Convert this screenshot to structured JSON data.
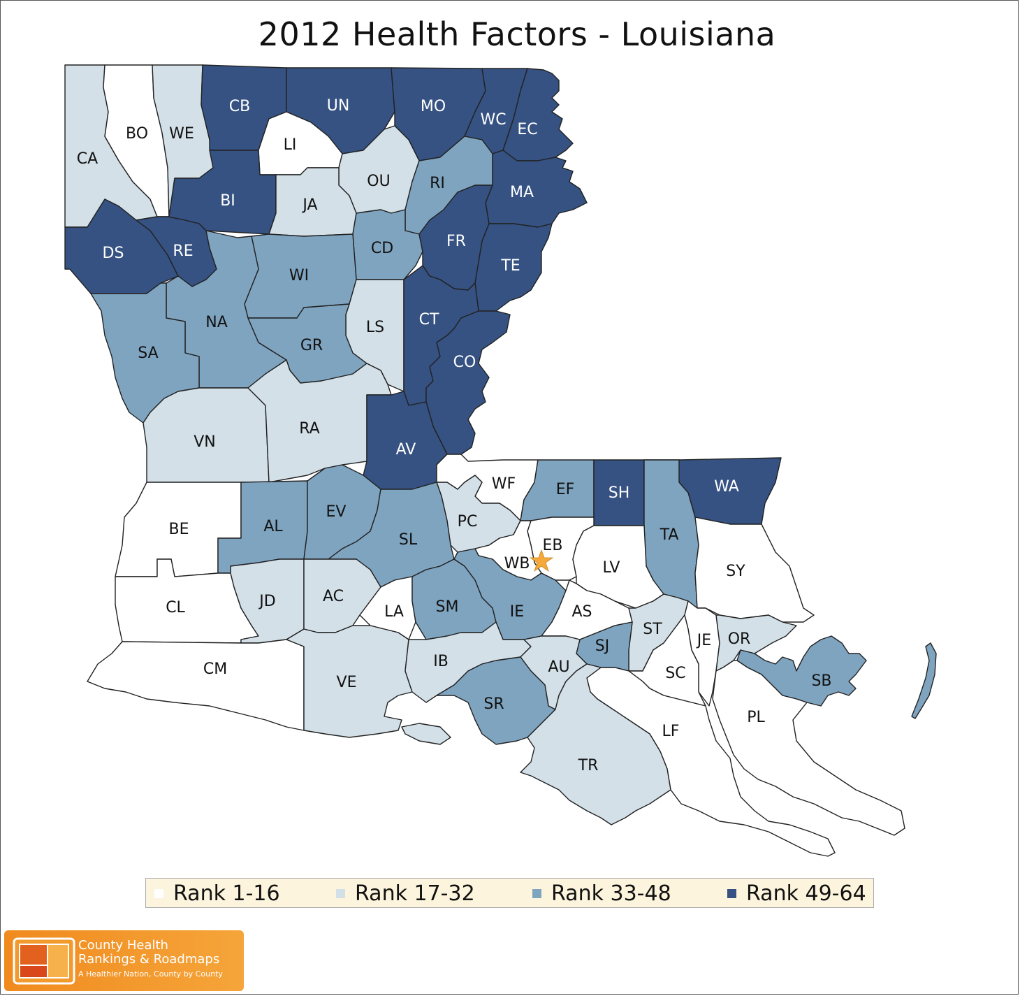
{
  "title": "2012 Health Factors - Louisiana",
  "colors": {
    "rank_1_16": "#ffffff",
    "rank_17_32": "#d3e0e8",
    "rank_33_48": "#7fa4c0",
    "rank_49_64": "#355282",
    "capital_star": "#f5a93a"
  },
  "legend": [
    {
      "label": "Rank 1-16",
      "color": "#ffffff"
    },
    {
      "label": "Rank 17-32",
      "color": "#d3e0e8"
    },
    {
      "label": "Rank 33-48",
      "color": "#7fa4c0"
    },
    {
      "label": "Rank 49-64",
      "color": "#355282"
    }
  ],
  "parishes": [
    {
      "abbr": "CA",
      "rank_group": 2
    },
    {
      "abbr": "BO",
      "rank_group": 1
    },
    {
      "abbr": "WE",
      "rank_group": 2
    },
    {
      "abbr": "CB",
      "rank_group": 4
    },
    {
      "abbr": "UN",
      "rank_group": 4
    },
    {
      "abbr": "MO",
      "rank_group": 4
    },
    {
      "abbr": "WC",
      "rank_group": 4
    },
    {
      "abbr": "EC",
      "rank_group": 4
    },
    {
      "abbr": "LI",
      "rank_group": 1
    },
    {
      "abbr": "OU",
      "rank_group": 2
    },
    {
      "abbr": "RI",
      "rank_group": 3
    },
    {
      "abbr": "MA",
      "rank_group": 4
    },
    {
      "abbr": "BI",
      "rank_group": 4
    },
    {
      "abbr": "JA",
      "rank_group": 2
    },
    {
      "abbr": "DS",
      "rank_group": 4
    },
    {
      "abbr": "RE",
      "rank_group": 4
    },
    {
      "abbr": "CD",
      "rank_group": 3
    },
    {
      "abbr": "FR",
      "rank_group": 4
    },
    {
      "abbr": "TE",
      "rank_group": 4
    },
    {
      "abbr": "WI",
      "rank_group": 3
    },
    {
      "abbr": "NA",
      "rank_group": 3
    },
    {
      "abbr": "LS",
      "rank_group": 2
    },
    {
      "abbr": "CT",
      "rank_group": 4
    },
    {
      "abbr": "SA",
      "rank_group": 3
    },
    {
      "abbr": "GR",
      "rank_group": 3
    },
    {
      "abbr": "CO",
      "rank_group": 4
    },
    {
      "abbr": "VN",
      "rank_group": 2
    },
    {
      "abbr": "RA",
      "rank_group": 2
    },
    {
      "abbr": "AV",
      "rank_group": 4
    },
    {
      "abbr": "WF",
      "rank_group": 1
    },
    {
      "abbr": "EF",
      "rank_group": 3
    },
    {
      "abbr": "SH",
      "rank_group": 4
    },
    {
      "abbr": "WA",
      "rank_group": 4
    },
    {
      "abbr": "BE",
      "rank_group": 1
    },
    {
      "abbr": "AL",
      "rank_group": 3
    },
    {
      "abbr": "EV",
      "rank_group": 3
    },
    {
      "abbr": "PC",
      "rank_group": 2
    },
    {
      "abbr": "SL",
      "rank_group": 3
    },
    {
      "abbr": "EB",
      "rank_group": 1
    },
    {
      "abbr": "WB",
      "rank_group": 1
    },
    {
      "abbr": "TA",
      "rank_group": 3
    },
    {
      "abbr": "LV",
      "rank_group": 1
    },
    {
      "abbr": "SY",
      "rank_group": 1
    },
    {
      "abbr": "CL",
      "rank_group": 1
    },
    {
      "abbr": "JD",
      "rank_group": 2
    },
    {
      "abbr": "AC",
      "rank_group": 2
    },
    {
      "abbr": "LA",
      "rank_group": 1
    },
    {
      "abbr": "SM",
      "rank_group": 3
    },
    {
      "abbr": "IE",
      "rank_group": 3
    },
    {
      "abbr": "AS",
      "rank_group": 1
    },
    {
      "abbr": "ST",
      "rank_group": 2
    },
    {
      "abbr": "JE",
      "rank_group": 1
    },
    {
      "abbr": "OR",
      "rank_group": 2
    },
    {
      "abbr": "SJ",
      "rank_group": 3
    },
    {
      "abbr": "CM",
      "rank_group": 1
    },
    {
      "abbr": "VE",
      "rank_group": 2
    },
    {
      "abbr": "IB",
      "rank_group": 2
    },
    {
      "abbr": "AU",
      "rank_group": 2
    },
    {
      "abbr": "SC",
      "rank_group": 1
    },
    {
      "abbr": "SB",
      "rank_group": 3
    },
    {
      "abbr": "SR",
      "rank_group": 3
    },
    {
      "abbr": "LF",
      "rank_group": 1
    },
    {
      "abbr": "PL",
      "rank_group": 1
    },
    {
      "abbr": "TR",
      "rank_group": 2
    }
  ],
  "logo": {
    "line1": "County Health",
    "line2": "Rankings & Roadmaps",
    "tagline": "A Healthier Nation, County by County"
  }
}
